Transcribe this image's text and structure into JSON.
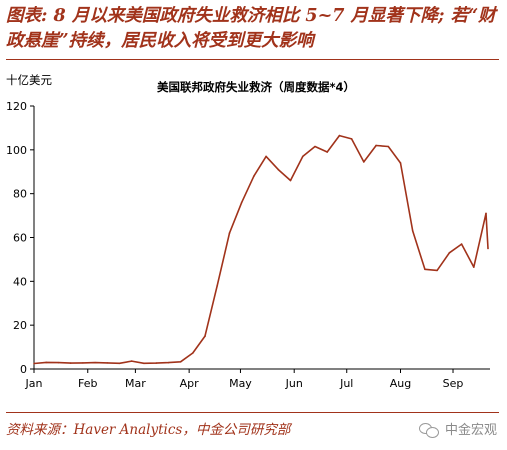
{
  "header": {
    "title": "图表: 8 月以来美国政府失业救济相比 5~7 月显著下降; 若“财政悬崖”持续，居民收入将受到更大影响"
  },
  "chart_data": {
    "type": "line",
    "title": "美国联邦政府失业救济（周度数据*4）",
    "ylabel": "十亿美元",
    "xlabel": "",
    "ylim": [
      0,
      120
    ],
    "yticks": [
      0,
      20,
      40,
      60,
      80,
      100,
      120
    ],
    "xlim": [
      0,
      37
    ],
    "month_labels": [
      {
        "label": "Jan",
        "x": 0
      },
      {
        "label": "Feb",
        "x": 4.4
      },
      {
        "label": "Mar",
        "x": 8.3
      },
      {
        "label": "Apr",
        "x": 12.7
      },
      {
        "label": "May",
        "x": 16.9
      },
      {
        "label": "Jun",
        "x": 21.3
      },
      {
        "label": "Jul",
        "x": 25.6
      },
      {
        "label": "Aug",
        "x": 30.0
      },
      {
        "label": "Sep",
        "x": 34.3
      }
    ],
    "grid": false,
    "legend": "none",
    "line_color": "#a1331b",
    "series": [
      {
        "x": [
          0,
          1,
          2,
          3,
          4,
          5,
          6,
          7,
          8,
          9,
          10,
          11,
          12,
          13,
          14,
          15,
          16,
          17,
          18,
          19,
          20,
          21,
          22,
          23,
          24,
          25,
          26,
          27,
          28,
          29,
          30,
          31,
          32,
          33,
          34,
          35,
          36,
          37
        ],
        "values": [
          2.5,
          3.0,
          2.9,
          2.7,
          2.8,
          2.9,
          2.8,
          2.6,
          3.6,
          2.6,
          2.7,
          2.9,
          3.3,
          7.3,
          15.0,
          38.0,
          62.0,
          76.0,
          88.0,
          97.0,
          91.0,
          86.0,
          97.0,
          101.5,
          99.0,
          106.5,
          105.0,
          94.5,
          102.0,
          101.5,
          94.0,
          63.0,
          45.5,
          45.0,
          53.0,
          57.0,
          46.5,
          71.0
        ]
      },
      {
        "x": [
          37,
          38
        ],
        "values": [
          71.0,
          55.0
        ]
      }
    ]
  },
  "footer": {
    "source": "资料来源：Haver Analytics，中金公司研究部",
    "watermark": "中金宏观"
  }
}
